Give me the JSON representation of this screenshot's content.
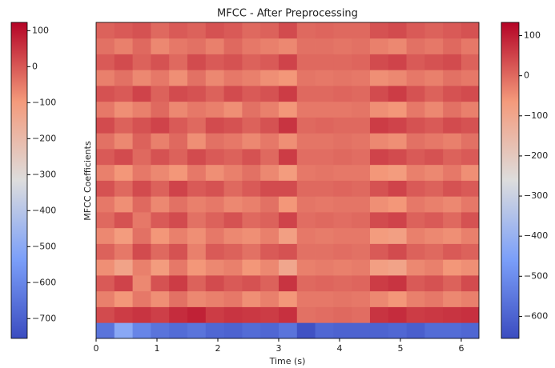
{
  "chart_data": {
    "type": "heatmap",
    "title": "MFCC - After Preprocessing",
    "x_label": "Time (s)",
    "y_label": "MFCC Coefficients",
    "xlim": [
      0,
      6.29
    ],
    "xticks": [
      0,
      1,
      2,
      3,
      4,
      5,
      6
    ],
    "ylim": [
      0,
      20
    ],
    "colormap": [
      "#3b4cc0",
      "#7b9ff9",
      "#dddddd",
      "#f49a7b",
      "#b40426"
    ],
    "colorbars": [
      {
        "lim": [
          -755,
          123
        ],
        "ticks": [
          100,
          0,
          {
            "value": -100,
            "label": "−100"
          },
          {
            "value": -200,
            "label": "−200"
          },
          {
            "value": -300,
            "label": "−300"
          },
          {
            "value": -400,
            "label": "−400"
          },
          {
            "value": -500,
            "label": "−500"
          },
          {
            "value": -600,
            "label": "−600"
          },
          {
            "value": -700,
            "label": "−700"
          }
        ]
      },
      {
        "lim": [
          -655,
          133
        ],
        "ticks": [
          100,
          0,
          {
            "value": -100,
            "label": "−100"
          },
          {
            "value": -200,
            "label": "−200"
          },
          {
            "value": -300,
            "label": "−300"
          },
          {
            "value": -400,
            "label": "−400"
          },
          {
            "value": -500,
            "label": "−500"
          },
          {
            "value": -600,
            "label": "−600"
          }
        ]
      }
    ],
    "x": [
      0.15,
      0.45,
      0.75,
      1.05,
      1.35,
      1.65,
      1.95,
      2.25,
      2.55,
      2.85,
      3.15,
      3.45,
      3.75,
      4.05,
      4.35,
      4.65,
      4.95,
      5.25,
      5.55,
      5.85,
      6.15
    ],
    "z": [
      [
        -560,
        -430,
        -520,
        -560,
        -580,
        -560,
        -590,
        -600,
        -580,
        -590,
        -560,
        -640,
        -590,
        -600,
        -600,
        -600,
        -590,
        -610,
        -580,
        -580,
        -590
      ],
      [
        40,
        60,
        70,
        55,
        80,
        95,
        60,
        70,
        65,
        60,
        75,
        -10,
        -5,
        0,
        -5,
        70,
        80,
        60,
        65,
        70,
        75
      ],
      [
        -30,
        -60,
        -20,
        -50,
        -10,
        -40,
        -30,
        -20,
        -50,
        -30,
        -60,
        -20,
        -20,
        -15,
        -20,
        -40,
        -60,
        -30,
        -20,
        -40,
        -30
      ],
      [
        20,
        50,
        -40,
        30,
        60,
        10,
        40,
        20,
        30,
        10,
        70,
        0,
        5,
        0,
        5,
        60,
        70,
        20,
        30,
        10,
        40
      ],
      [
        -50,
        -90,
        -30,
        -70,
        -20,
        -60,
        -40,
        -30,
        -60,
        -40,
        -100,
        -30,
        -25,
        -30,
        -25,
        -80,
        -90,
        -40,
        -30,
        -60,
        -50
      ],
      [
        10,
        -20,
        40,
        0,
        30,
        -30,
        20,
        10,
        -10,
        20,
        30,
        -10,
        -10,
        -5,
        -10,
        20,
        40,
        10,
        0,
        20,
        10
      ],
      [
        -40,
        -70,
        -10,
        -60,
        -30,
        -50,
        -20,
        -40,
        -50,
        -30,
        -80,
        -20,
        -25,
        -20,
        -20,
        -70,
        -80,
        -30,
        -40,
        -50,
        -30
      ],
      [
        0,
        30,
        -20,
        20,
        40,
        -10,
        10,
        30,
        0,
        10,
        50,
        -5,
        0,
        -5,
        0,
        40,
        50,
        10,
        20,
        0,
        30
      ],
      [
        -20,
        -50,
        0,
        -40,
        -10,
        -30,
        -20,
        -40,
        -30,
        -10,
        -60,
        -15,
        -20,
        -15,
        -15,
        -50,
        -60,
        -20,
        -30,
        -40,
        -20
      ],
      [
        30,
        0,
        40,
        10,
        50,
        20,
        30,
        0,
        20,
        40,
        40,
        0,
        0,
        5,
        0,
        30,
        50,
        20,
        10,
        30,
        20
      ],
      [
        -30,
        -60,
        -20,
        -40,
        -60,
        -20,
        -50,
        -30,
        -10,
        -40,
        -70,
        -20,
        -15,
        -20,
        -20,
        -60,
        -70,
        -30,
        -40,
        -20,
        -50
      ],
      [
        20,
        40,
        0,
        30,
        10,
        40,
        20,
        10,
        30,
        0,
        60,
        -5,
        -5,
        0,
        -5,
        50,
        40,
        20,
        30,
        10,
        20
      ],
      [
        -10,
        -40,
        10,
        -30,
        0,
        -50,
        -10,
        -20,
        -40,
        -20,
        -50,
        -15,
        -15,
        -10,
        -15,
        -40,
        -50,
        -10,
        -20,
        -30,
        -10
      ],
      [
        40,
        10,
        30,
        50,
        20,
        0,
        40,
        30,
        10,
        30,
        70,
        0,
        5,
        0,
        0,
        60,
        50,
        30,
        20,
        40,
        30
      ],
      [
        -20,
        -50,
        -30,
        0,
        -40,
        -20,
        -30,
        -50,
        -10,
        -30,
        -60,
        -20,
        -20,
        -20,
        -15,
        -50,
        -60,
        -20,
        -40,
        -10,
        -30
      ],
      [
        30,
        20,
        50,
        10,
        40,
        30,
        10,
        40,
        20,
        30,
        60,
        0,
        0,
        5,
        0,
        40,
        60,
        30,
        10,
        30,
        40
      ],
      [
        -30,
        -10,
        -40,
        -20,
        -50,
        -10,
        -40,
        -20,
        -30,
        -50,
        -60,
        -15,
        -20,
        -15,
        -20,
        -50,
        -40,
        -20,
        -30,
        -10,
        -20
      ],
      [
        20,
        40,
        10,
        30,
        0,
        40,
        20,
        30,
        10,
        20,
        50,
        0,
        0,
        0,
        5,
        40,
        50,
        20,
        30,
        40,
        10
      ],
      [
        -10,
        -30,
        0,
        -40,
        -20,
        -10,
        -30,
        0,
        -20,
        -30,
        -40,
        -10,
        -10,
        -15,
        -10,
        -30,
        -40,
        -10,
        -20,
        0,
        -20
      ],
      [
        10,
        20,
        30,
        0,
        20,
        10,
        30,
        20,
        0,
        10,
        40,
        0,
        5,
        0,
        0,
        30,
        40,
        20,
        10,
        20,
        30
      ]
    ]
  }
}
